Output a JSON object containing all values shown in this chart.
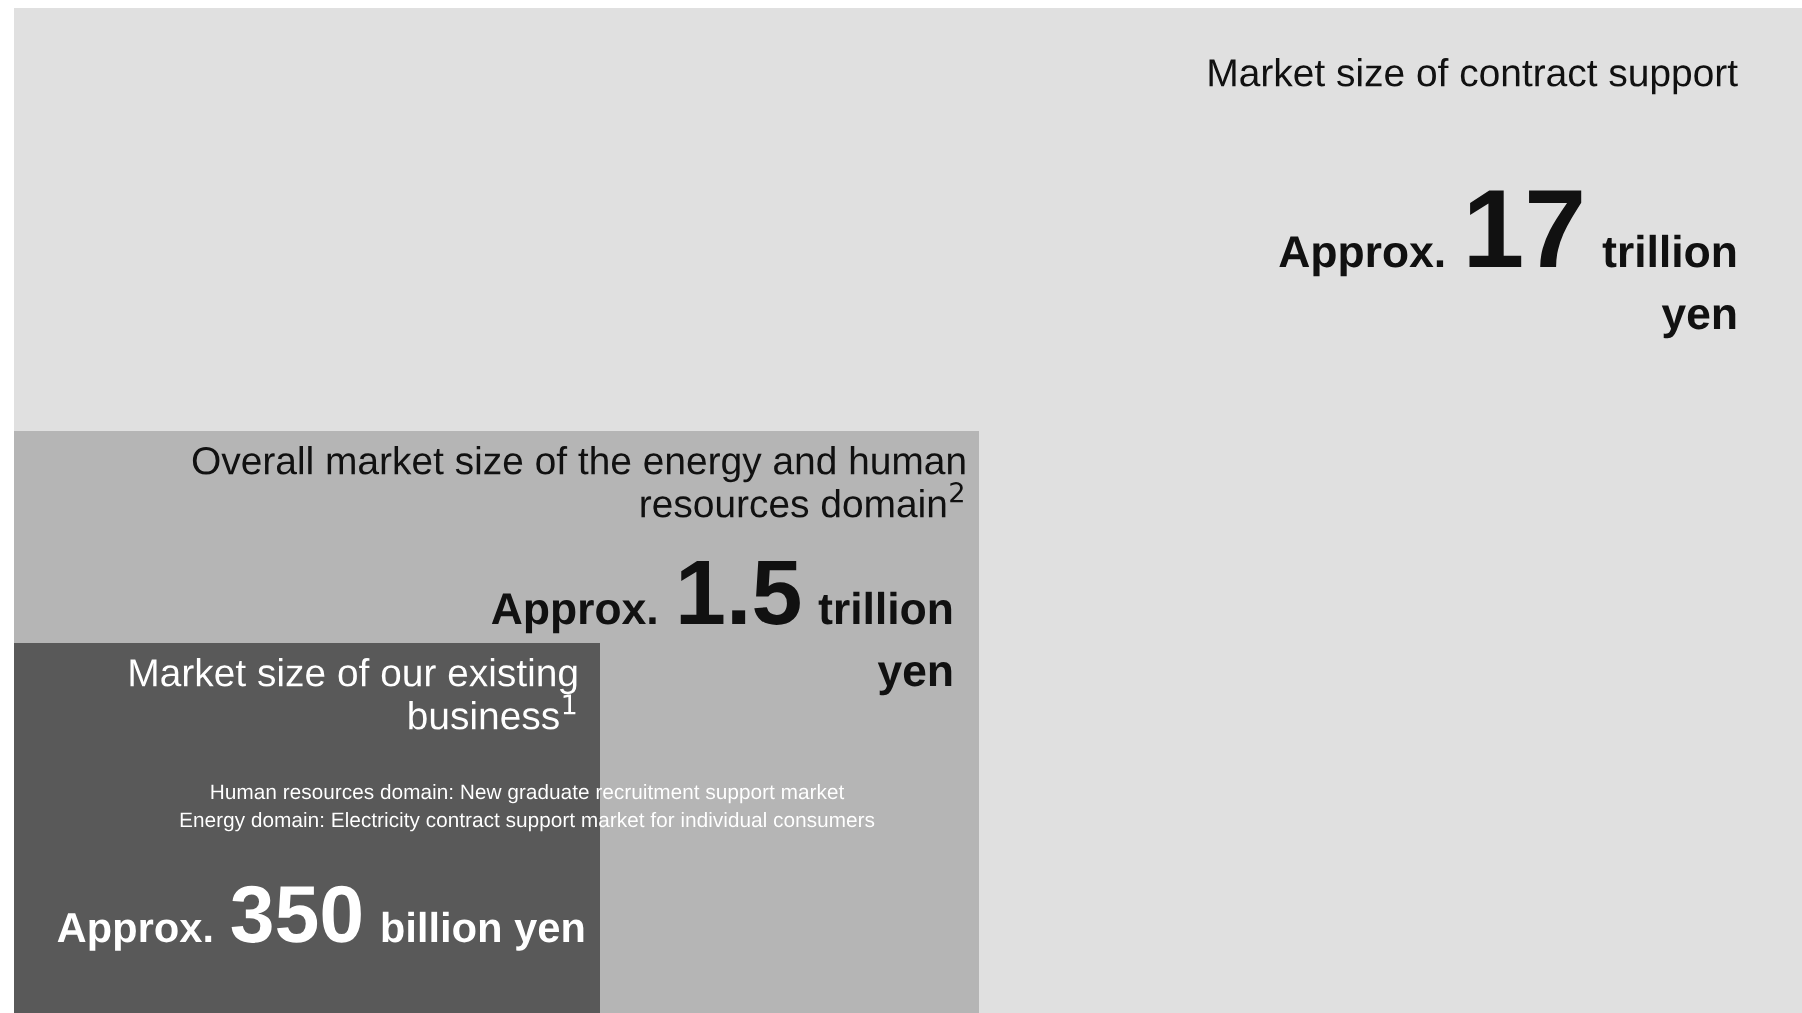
{
  "chart_data": {
    "type": "other",
    "categories": [
      "Market size of contract support",
      "Overall market size of the energy and human\nresources domain$^{2}$",
      "Market size of our existing\nbusiness$^{1}$"
    ],
    "values": [
      17,
      1.5,
      350
    ],
    "value_labels": [
      "Approx. 17 trillion\nyen",
      "Approx. 1.5 trillion\nyen",
      "Approx. 350 billion yen"
    ],
    "colors": [
      "#e0e0e0",
      "#b5b5b5",
      "#595959"
    ],
    "annotations": [
      "Human resources domain: New graduate recruitment support market",
      "Energy domain: Electricity contract support market for individual consumers"
    ]
  }
}
